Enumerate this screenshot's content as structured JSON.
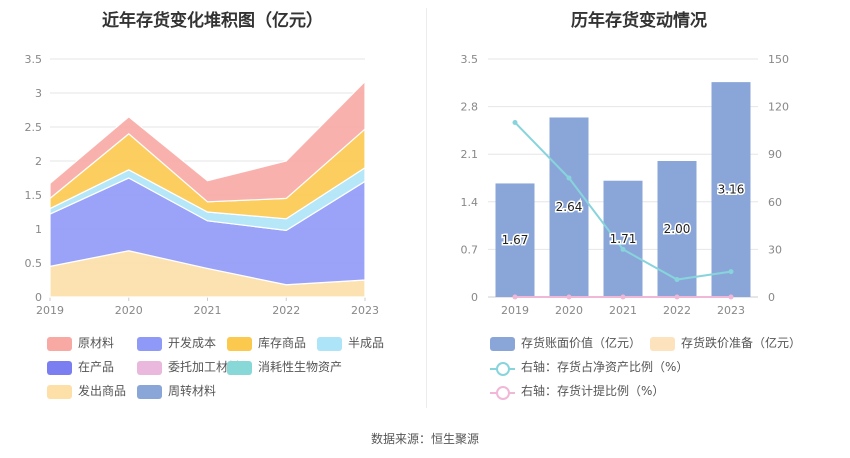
{
  "source_text": "数据来源：恒生聚源",
  "colors": {
    "原材料": "#f8a9a4",
    "开发成本": "#8f99f7",
    "库存商品": "#fcc94f",
    "半成品": "#aee4f8",
    "在产品": "#7a7ef0",
    "委托加工材料": "#e9b8dc",
    "消耗性生物资产": "#88d8d8",
    "发出商品": "#fddfa8",
    "周转材料": "#8aa6d8",
    "存货账面价值": "#8aa6d8",
    "存货跌价准备": "#fde3bd",
    "存货占净资产比例": "#88d4dc",
    "存货计提比例": "#f0b7d6"
  },
  "chart_data": [
    {
      "type": "area",
      "title": "近年存货变化堆积图（亿元）",
      "categories": [
        "2019",
        "2020",
        "2021",
        "2022",
        "2023"
      ],
      "ylim": [
        0,
        3.5
      ],
      "yticks": [
        "0",
        "0.5",
        "1",
        "1.5",
        "2",
        "2.5",
        "3",
        "3.5"
      ],
      "grid": true,
      "legend_position": "bottom",
      "legend": [
        "原材料",
        "开发成本",
        "库存商品",
        "半成品",
        "在产品",
        "委托加工材料",
        "消耗性生物资产",
        "发出商品",
        "周转材料"
      ],
      "series": [
        {
          "name": "发出商品",
          "values": [
            0.45,
            0.68,
            0.42,
            0.18,
            0.25
          ]
        },
        {
          "name": "开发成本",
          "values": [
            0.77,
            1.07,
            0.7,
            0.8,
            1.45
          ]
        },
        {
          "name": "半成品",
          "values": [
            0.08,
            0.12,
            0.13,
            0.17,
            0.2
          ]
        },
        {
          "name": "库存商品",
          "values": [
            0.15,
            0.53,
            0.15,
            0.3,
            0.57
          ]
        },
        {
          "name": "原材料",
          "values": [
            0.22,
            0.25,
            0.31,
            0.55,
            0.7
          ]
        }
      ]
    },
    {
      "type": "bar",
      "title": "历年存货变动情况",
      "categories": [
        "2019",
        "2020",
        "2021",
        "2022",
        "2023"
      ],
      "ylim": [
        0,
        3.5
      ],
      "yticks": [
        "0",
        "0.7",
        "1.4",
        "2.1",
        "2.8",
        "3.5"
      ],
      "y2lim": [
        0,
        150
      ],
      "y2ticks": [
        "0",
        "30",
        "60",
        "90",
        "120",
        "150"
      ],
      "grid": true,
      "legend_position": "bottom",
      "series": [
        {
          "name": "存货账面价值（亿元）",
          "type": "bar",
          "axis": "left",
          "values": [
            1.67,
            2.64,
            1.71,
            2.0,
            3.16
          ],
          "labels": [
            "1.67",
            "2.64",
            "1.71",
            "2.00",
            "3.16"
          ]
        },
        {
          "name": "存货跌价准备（亿元）",
          "type": "bar",
          "axis": "left",
          "values": [
            0,
            0,
            0,
            0,
            0
          ]
        },
        {
          "name": "右轴：存货占净资产比例（%）",
          "type": "line",
          "axis": "right",
          "values": [
            110,
            75,
            30,
            11,
            16
          ]
        },
        {
          "name": "右轴：存货计提比例（%）",
          "type": "line",
          "axis": "right",
          "values": [
            0,
            0,
            0,
            0,
            0
          ]
        }
      ]
    }
  ]
}
